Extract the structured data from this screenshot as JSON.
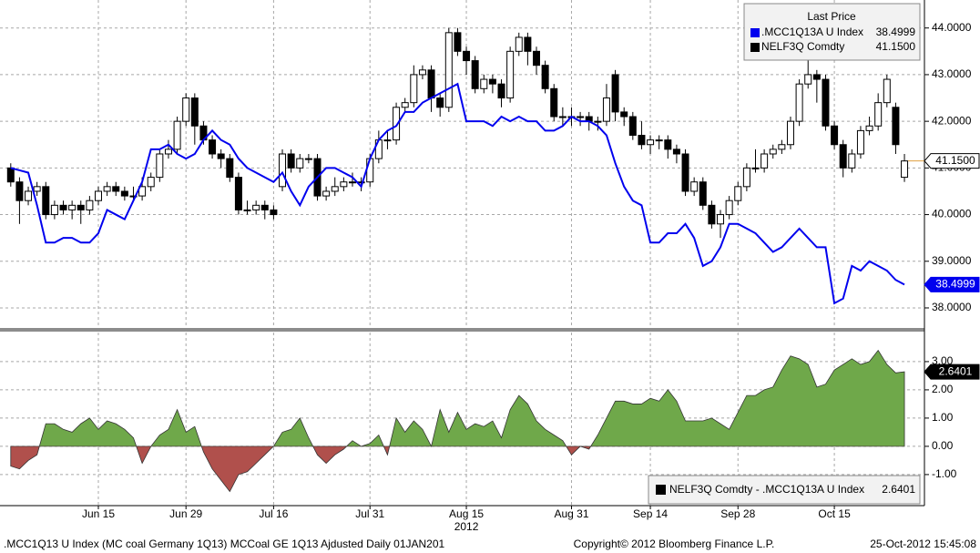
{
  "chart_data": [
    {
      "type": "candlestick",
      "categories": [
        null,
        null,
        null,
        null,
        null,
        null,
        null,
        null,
        null,
        null,
        "Jun 15",
        null,
        null,
        null,
        null,
        null,
        null,
        null,
        null,
        null,
        "Jun 29",
        null,
        null,
        null,
        null,
        null,
        null,
        null,
        null,
        null,
        "Jul 16",
        null,
        null,
        null,
        null,
        null,
        null,
        null,
        null,
        null,
        null,
        "Jul 31",
        null,
        null,
        null,
        null,
        null,
        null,
        null,
        null,
        null,
        null,
        "Aug 15",
        null,
        null,
        null,
        null,
        null,
        null,
        null,
        null,
        null,
        null,
        null,
        "Aug 31",
        null,
        null,
        null,
        null,
        null,
        null,
        null,
        null,
        "Sep 14",
        null,
        null,
        null,
        null,
        null,
        null,
        null,
        null,
        null,
        "Sep 28",
        null,
        null,
        null,
        null,
        null,
        null,
        null,
        null,
        null,
        null,
        "Oct 15",
        null,
        null,
        null,
        null,
        null,
        null,
        null,
        null
      ],
      "year_label": "2012",
      "series": [
        {
          "name": ".MCC1Q13A U Index",
          "type": "line",
          "color": "#0000ee",
          "value_label": "38.4999",
          "values": [
            41.0,
            40.95,
            40.9,
            40.2,
            39.4,
            39.4,
            39.5,
            39.5,
            39.4,
            39.4,
            39.6,
            40.1,
            40.0,
            39.9,
            40.3,
            40.7,
            41.4,
            41.4,
            41.5,
            41.3,
            41.2,
            41.3,
            41.6,
            41.8,
            41.6,
            41.5,
            41.2,
            41.0,
            40.9,
            40.8,
            40.7,
            40.9,
            40.5,
            40.2,
            40.6,
            40.8,
            41.0,
            41.0,
            40.9,
            40.8,
            40.6,
            41.2,
            41.6,
            41.8,
            41.9,
            42.2,
            42.2,
            42.4,
            42.5,
            42.6,
            42.7,
            42.8,
            42.0,
            42.0,
            42.0,
            41.9,
            42.1,
            42.0,
            42.1,
            42.0,
            42.0,
            41.8,
            41.8,
            41.9,
            42.1,
            42.0,
            42.0,
            41.9,
            41.7,
            41.1,
            40.6,
            40.3,
            40.2,
            39.4,
            39.4,
            39.6,
            39.6,
            39.8,
            39.5,
            38.9,
            39.0,
            39.3,
            39.8,
            39.8,
            39.7,
            39.6,
            39.4,
            39.2,
            39.3,
            39.5,
            39.7,
            39.5,
            39.3,
            39.3,
            38.1,
            38.2,
            38.9,
            38.8,
            39.0,
            38.9,
            38.8,
            38.6,
            38.4999
          ]
        },
        {
          "name": "NELF3Q Comdty",
          "type": "candlestick",
          "color": "#000000",
          "up_color": "#ffffff",
          "value_label": "41.1500",
          "last_price_color": "#e0a040",
          "open": [
            41.0,
            40.7,
            40.3,
            40.5,
            40.6,
            40.0,
            40.2,
            40.1,
            40.2,
            40.1,
            40.3,
            40.5,
            40.6,
            40.5,
            40.4,
            40.4,
            40.6,
            40.8,
            41.3,
            41.4,
            42.0,
            42.5,
            41.9,
            41.6,
            41.3,
            41.2,
            40.8,
            40.1,
            40.1,
            40.2,
            40.1,
            40.6,
            41.3,
            41.0,
            41.2,
            41.2,
            40.4,
            40.5,
            40.6,
            40.7,
            40.7,
            40.7,
            41.2,
            41.6,
            41.6,
            42.3,
            42.4,
            43.0,
            43.1,
            42.5,
            42.3,
            43.9,
            43.5,
            43.3,
            42.7,
            42.9,
            42.8,
            42.5,
            43.5,
            43.8,
            43.5,
            43.2,
            42.7,
            42.1,
            42.1,
            42.1,
            42.1,
            42.0,
            42.0,
            43.0,
            42.2,
            42.1,
            41.7,
            41.5,
            41.6,
            41.6,
            41.4,
            41.3,
            40.5,
            40.7,
            40.2,
            39.8,
            40.0,
            40.3,
            40.6,
            41.0,
            41.0,
            41.3,
            41.4,
            41.5,
            42.0,
            42.8,
            43.0,
            42.9,
            41.9,
            41.5,
            41.0,
            41.3,
            41.8,
            41.9,
            42.4,
            42.3,
            40.8
          ],
          "high": [
            41.1,
            40.8,
            40.6,
            40.7,
            40.7,
            40.3,
            40.3,
            40.3,
            40.3,
            40.4,
            40.6,
            40.7,
            40.7,
            40.6,
            40.6,
            40.8,
            40.9,
            41.4,
            41.6,
            42.1,
            42.6,
            42.6,
            42.0,
            41.7,
            41.4,
            41.3,
            40.9,
            40.3,
            40.3,
            40.3,
            40.2,
            41.4,
            41.4,
            41.3,
            41.3,
            41.3,
            40.6,
            40.8,
            40.8,
            40.9,
            40.8,
            41.3,
            41.8,
            41.8,
            42.4,
            42.5,
            43.2,
            43.2,
            43.2,
            42.6,
            44.0,
            44.0,
            43.6,
            43.4,
            43.0,
            43.0,
            42.9,
            43.6,
            43.9,
            43.9,
            43.6,
            43.3,
            42.8,
            42.3,
            42.3,
            42.2,
            42.2,
            42.1,
            42.8,
            43.1,
            42.3,
            42.2,
            42.0,
            41.7,
            41.7,
            41.7,
            41.5,
            41.4,
            40.8,
            40.8,
            40.3,
            40.1,
            40.4,
            40.7,
            41.1,
            41.4,
            41.4,
            41.5,
            41.6,
            42.1,
            42.9,
            43.4,
            43.1,
            43.0,
            42.0,
            41.6,
            41.4,
            41.9,
            42.1,
            42.6,
            43.0,
            42.4,
            41.3
          ],
          "low": [
            40.6,
            39.8,
            40.2,
            40.4,
            39.9,
            39.9,
            40.0,
            39.9,
            39.8,
            40.0,
            40.2,
            40.4,
            40.4,
            40.3,
            40.3,
            40.3,
            40.5,
            40.7,
            41.2,
            41.3,
            41.9,
            41.5,
            41.5,
            41.2,
            41.0,
            40.7,
            40.0,
            40.0,
            40.0,
            39.9,
            39.9,
            40.5,
            40.9,
            40.9,
            41.1,
            40.3,
            40.3,
            40.4,
            40.5,
            40.6,
            40.5,
            40.6,
            41.1,
            41.4,
            41.5,
            42.2,
            42.3,
            42.9,
            42.2,
            42.1,
            42.2,
            43.4,
            43.0,
            42.6,
            42.6,
            42.6,
            42.3,
            42.4,
            43.4,
            43.2,
            43.0,
            42.6,
            42.0,
            41.9,
            41.9,
            41.9,
            41.8,
            41.8,
            41.9,
            42.0,
            41.9,
            41.6,
            41.4,
            41.3,
            41.4,
            41.2,
            41.1,
            40.4,
            40.4,
            40.1,
            39.7,
            39.5,
            39.9,
            40.2,
            40.5,
            40.9,
            40.9,
            41.2,
            41.3,
            41.4,
            41.9,
            42.7,
            42.4,
            41.8,
            41.4,
            40.8,
            40.9,
            41.2,
            41.7,
            41.8,
            42.3,
            41.3,
            40.7
          ],
          "close": [
            40.7,
            40.3,
            40.5,
            40.6,
            40.0,
            40.2,
            40.1,
            40.2,
            40.1,
            40.3,
            40.5,
            40.6,
            40.5,
            40.4,
            40.4,
            40.6,
            40.8,
            41.3,
            41.4,
            42.0,
            42.5,
            41.9,
            41.6,
            41.3,
            41.2,
            40.8,
            40.1,
            40.1,
            40.2,
            40.1,
            40.0,
            41.3,
            41.0,
            41.2,
            41.2,
            40.4,
            40.5,
            40.6,
            40.7,
            40.7,
            40.7,
            41.2,
            41.6,
            41.6,
            42.3,
            42.4,
            43.0,
            43.1,
            42.5,
            42.3,
            43.9,
            43.5,
            43.3,
            42.7,
            42.9,
            42.8,
            42.5,
            43.5,
            43.8,
            43.5,
            43.2,
            42.7,
            42.1,
            42.1,
            42.1,
            42.1,
            42.0,
            42.0,
            42.5,
            42.2,
            42.1,
            41.7,
            41.5,
            41.6,
            41.6,
            41.4,
            41.3,
            40.5,
            40.7,
            40.2,
            39.8,
            40.0,
            40.3,
            40.6,
            41.0,
            41.0,
            41.3,
            41.4,
            41.5,
            42.0,
            42.8,
            43.0,
            42.9,
            41.9,
            41.5,
            41.0,
            41.3,
            41.8,
            41.9,
            42.4,
            42.9,
            41.5,
            41.15
          ]
        }
      ],
      "ylim": [
        37.57,
        44.6
      ],
      "yticks": [
        {
          "value": 38,
          "label": "38.0000"
        },
        {
          "value": 39,
          "label": "39.0000"
        },
        {
          "value": 40,
          "label": "40.0000"
        },
        {
          "value": 41,
          "label": "41.0000"
        },
        {
          "value": 42,
          "label": "42.0000"
        },
        {
          "value": 43,
          "label": "43.0000"
        },
        {
          "value": 44,
          "label": "44.0000"
        }
      ],
      "grid": true,
      "legend": "upper right",
      "legend_title": "Last Price"
    },
    {
      "type": "area",
      "series": [
        {
          "name": "NELF3Q Comdty - .MCC1Q13A U Index",
          "color": "#6fa84a",
          "negative_color": "#b0504c",
          "legend_color": "#000000",
          "value_label": "2.6401",
          "values": [
            -0.7,
            -0.8,
            -0.5,
            -0.3,
            0.8,
            0.8,
            0.6,
            0.5,
            0.8,
            1.0,
            0.6,
            0.9,
            0.8,
            0.6,
            0.3,
            -0.6,
            0.0,
            0.4,
            0.6,
            1.3,
            0.5,
            0.7,
            -0.2,
            -0.8,
            -1.2,
            -1.6,
            -1.0,
            -0.9,
            -0.6,
            -0.3,
            0.0,
            0.5,
            0.6,
            1.0,
            0.3,
            -0.3,
            -0.6,
            -0.3,
            -0.1,
            0.2,
            0.0,
            0.1,
            0.4,
            -0.3,
            1.0,
            0.5,
            0.9,
            0.6,
            0.0,
            1.3,
            0.5,
            1.2,
            0.6,
            0.8,
            0.7,
            0.9,
            0.3,
            1.3,
            1.8,
            1.5,
            0.9,
            0.6,
            0.4,
            0.2,
            -0.3,
            0.0,
            -0.1,
            0.4,
            1.0,
            1.6,
            1.6,
            1.5,
            1.5,
            1.7,
            1.6,
            2.0,
            1.6,
            0.9,
            0.9,
            0.9,
            1.0,
            0.8,
            0.6,
            1.2,
            1.8,
            1.8,
            2.0,
            2.1,
            2.7,
            3.2,
            3.1,
            2.9,
            2.1,
            2.2,
            2.7,
            2.9,
            3.1,
            2.9,
            3.0,
            3.4,
            2.9,
            2.6,
            2.6401
          ]
        }
      ],
      "ylim": [
        -2.1,
        4.03
      ],
      "yticks": [
        {
          "value": -1,
          "label": "-1.00"
        },
        {
          "value": 0,
          "label": "0.00"
        },
        {
          "value": 1,
          "label": "1.00"
        },
        {
          "value": 2,
          "label": "2.00"
        },
        {
          "value": 3,
          "label": "3.00"
        }
      ],
      "grid": true,
      "legend": "lower right"
    }
  ],
  "footer": {
    "left": ".MCC1Q13 U Index (MC coal Germany 1Q13) MCCoal GE 1Q13 Ajdusted  Daily 01JAN201",
    "center": "Copyright© 2012 Bloomberg Finance L.P.",
    "right": "25-Oct-2012 15:45:08"
  }
}
